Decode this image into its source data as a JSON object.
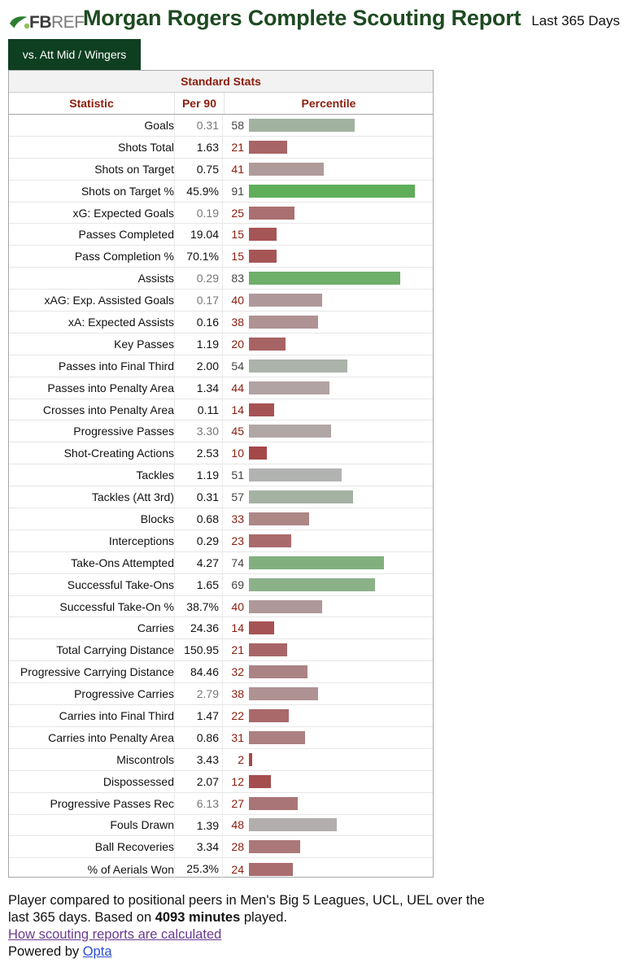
{
  "header": {
    "logo_fb": "FB",
    "logo_ref": "REF",
    "title": "Morgan Rogers Complete Scouting Report",
    "period": "Last 365 Days"
  },
  "tab": {
    "label": "vs. Att Mid / Wingers"
  },
  "table": {
    "caption": "Standard Stats",
    "columns": [
      "Statistic",
      "Per 90",
      "Percentile"
    ],
    "rows": [
      {
        "statistic": "Goals",
        "per90": "0.31",
        "percentile": 58,
        "non_penalty_note": true
      },
      {
        "statistic": "Shots Total",
        "per90": "1.63",
        "percentile": 21
      },
      {
        "statistic": "Shots on Target",
        "per90": "0.75",
        "percentile": 41
      },
      {
        "statistic": "Shots on Target %",
        "per90": "45.9%",
        "percentile": 91
      },
      {
        "statistic": "xG: Expected Goals",
        "per90": "0.19",
        "percentile": 25,
        "non_penalty_note": true
      },
      {
        "statistic": "Passes Completed",
        "per90": "19.04",
        "percentile": 15
      },
      {
        "statistic": "Pass Completion %",
        "per90": "70.1%",
        "percentile": 15
      },
      {
        "statistic": "Assists",
        "per90": "0.29",
        "percentile": 83,
        "non_penalty_note": true
      },
      {
        "statistic": "xAG: Exp. Assisted Goals",
        "per90": "0.17",
        "percentile": 40,
        "non_penalty_note": true
      },
      {
        "statistic": "xA: Expected Assists",
        "per90": "0.16",
        "percentile": 38
      },
      {
        "statistic": "Key Passes",
        "per90": "1.19",
        "percentile": 20
      },
      {
        "statistic": "Passes into Final Third",
        "per90": "2.00",
        "percentile": 54
      },
      {
        "statistic": "Passes into Penalty Area",
        "per90": "1.34",
        "percentile": 44
      },
      {
        "statistic": "Crosses into Penalty Area",
        "per90": "0.11",
        "percentile": 14
      },
      {
        "statistic": "Progressive Passes",
        "per90": "3.30",
        "percentile": 45,
        "non_penalty_note": true
      },
      {
        "statistic": "Shot-Creating Actions",
        "per90": "2.53",
        "percentile": 10
      },
      {
        "statistic": "Tackles",
        "per90": "1.19",
        "percentile": 51
      },
      {
        "statistic": "Tackles (Att 3rd)",
        "per90": "0.31",
        "percentile": 57
      },
      {
        "statistic": "Blocks",
        "per90": "0.68",
        "percentile": 33
      },
      {
        "statistic": "Interceptions",
        "per90": "0.29",
        "percentile": 23
      },
      {
        "statistic": "Take-Ons Attempted",
        "per90": "4.27",
        "percentile": 74
      },
      {
        "statistic": "Successful Take-Ons",
        "per90": "1.65",
        "percentile": 69
      },
      {
        "statistic": "Successful Take-On %",
        "per90": "38.7%",
        "percentile": 40
      },
      {
        "statistic": "Carries",
        "per90": "24.36",
        "percentile": 14
      },
      {
        "statistic": "Total Carrying Distance",
        "per90": "150.95",
        "percentile": 21
      },
      {
        "statistic": "Progressive Carrying Distance",
        "per90": "84.46",
        "percentile": 32
      },
      {
        "statistic": "Progressive Carries",
        "per90": "2.79",
        "percentile": 38,
        "non_penalty_note": true
      },
      {
        "statistic": "Carries into Final Third",
        "per90": "1.47",
        "percentile": 22
      },
      {
        "statistic": "Carries into Penalty Area",
        "per90": "0.86",
        "percentile": 31
      },
      {
        "statistic": "Miscontrols",
        "per90": "3.43",
        "percentile": 2
      },
      {
        "statistic": "Dispossessed",
        "per90": "2.07",
        "percentile": 12
      },
      {
        "statistic": "Progressive Passes Rec",
        "per90": "6.13",
        "percentile": 27,
        "non_penalty_note": true
      },
      {
        "statistic": "Fouls Drawn",
        "per90": "1.39",
        "percentile": 48
      },
      {
        "statistic": "Ball Recoveries",
        "per90": "3.34",
        "percentile": 28
      },
      {
        "statistic": "% of Aerials Won",
        "per90": "25.3%",
        "percentile": 24
      }
    ]
  },
  "footer": {
    "line_pre": "Player compared to positional peers in Men's Big 5 Leagues, UCL, UEL over the last 365 days. Based on ",
    "minutes_bold": "4093 minutes",
    "line_post": " played.",
    "link_text": "How scouting reports are calculated",
    "powered_by": "Powered by ",
    "powered_link": "Opta"
  },
  "colors": {
    "title_green": "#1e4a22",
    "tab_bg": "#0e3f20",
    "header_red": "#8b1d0c",
    "bar_high": "#5fae5a",
    "bar_mid": "#b3b3b3",
    "bar_low": "#a4484a",
    "link_visited": "#6a3a8f",
    "link": "#2b4fd1"
  }
}
